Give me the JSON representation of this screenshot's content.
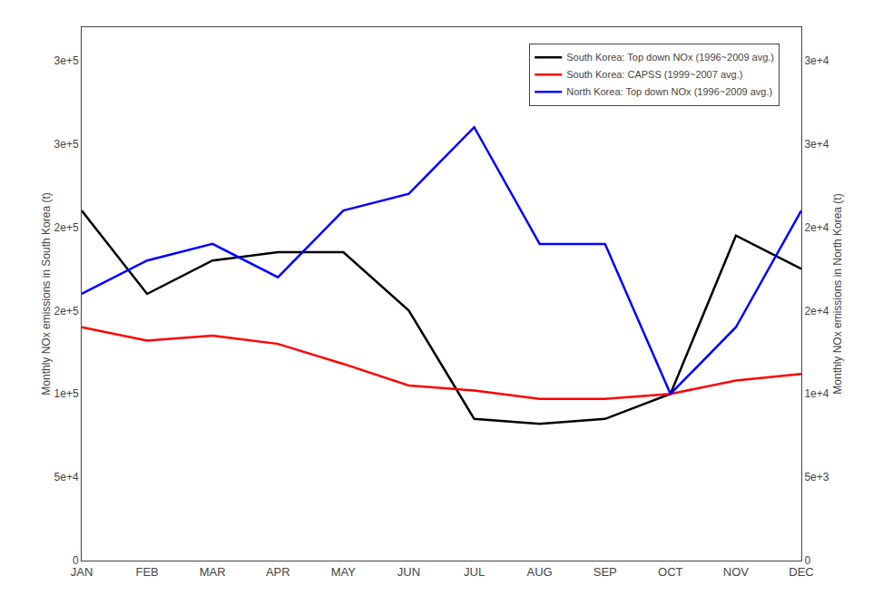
{
  "chart_data": {
    "type": "line",
    "categories": [
      "JAN",
      "FEB",
      "MAR",
      "APR",
      "MAY",
      "JUN",
      "JUL",
      "AUG",
      "SEP",
      "OCT",
      "NOV",
      "DEC"
    ],
    "series": [
      {
        "name": "South Korea: Top down NOx (1996~2009 avg.)",
        "color": "#000000",
        "axis": "y",
        "values": [
          210000,
          160000,
          180000,
          185000,
          185000,
          150000,
          85000,
          82000,
          85000,
          100000,
          195000,
          175000
        ]
      },
      {
        "name": "South Korea: CAPSS (1999~2007 avg.)",
        "color": "#ff0000",
        "axis": "y",
        "values": [
          140000,
          132000,
          135000,
          130000,
          118000,
          105000,
          102000,
          97000,
          97000,
          100000,
          108000,
          112000
        ]
      },
      {
        "name": "North Korea: Top down NOx (1996~2009 avg.)",
        "color": "#0000ff",
        "axis": "y2",
        "values": [
          16000,
          18000,
          19000,
          17000,
          21000,
          22000,
          26000,
          19000,
          19000,
          10000,
          14000,
          21000
        ]
      }
    ],
    "ylabel": "Monthly NOx emissions in South Korea (t)",
    "y2label": "Monthly NOx emissions in North Korea (t)",
    "ylim": [
      0,
      320000
    ],
    "yticks": [
      0,
      {
        "value": 50000,
        "label": "5e+4"
      },
      {
        "value": 100000,
        "label": "1e+5"
      },
      {
        "value": 150000,
        "label": "2e+5"
      },
      {
        "value": 200000,
        "label": "2e+5"
      },
      {
        "value": 250000,
        "label": "3e+5"
      },
      {
        "value": 300000,
        "label": "3e+5"
      }
    ],
    "y2lim": [
      0,
      32000
    ],
    "y2ticks": [
      0,
      {
        "value": 5000,
        "label": "5e+3"
      },
      {
        "value": 10000,
        "label": "1e+4"
      },
      {
        "value": 15000,
        "label": "2e+4"
      },
      {
        "value": 20000,
        "label": "2e+4"
      },
      {
        "value": 25000,
        "label": "3e+4"
      },
      {
        "value": 30000,
        "label": "3e+4"
      }
    ],
    "grid": false,
    "legend": "upper right"
  }
}
